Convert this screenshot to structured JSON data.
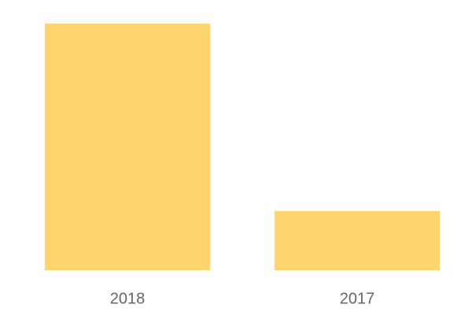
{
  "chart_data": {
    "type": "bar",
    "categories": [
      "2018",
      "2017"
    ],
    "values": [
      100,
      24
    ],
    "color": "#fed66d",
    "ylim": [
      0,
      100
    ],
    "grid": false
  }
}
